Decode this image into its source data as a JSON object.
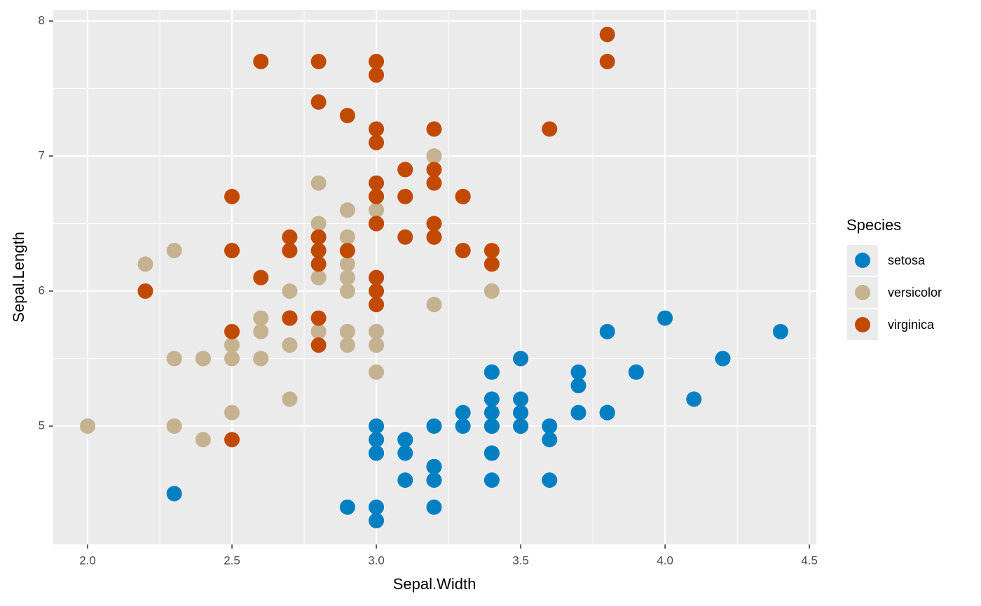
{
  "chart_data": {
    "type": "scatter",
    "x_label": "Sepal.Width",
    "y_label": "Sepal.Length",
    "legend_title": "Species",
    "legend_position": "right",
    "grid": true,
    "xlim": [
      1.881,
      4.524
    ],
    "ylim": [
      4.124,
      8.083
    ],
    "xticks": [
      {
        "value": 2.0,
        "label": "2.0"
      },
      {
        "value": 2.5,
        "label": "2.5"
      },
      {
        "value": 3.0,
        "label": "3.0"
      },
      {
        "value": 3.5,
        "label": "3.5"
      },
      {
        "value": 4.0,
        "label": "4.0"
      },
      {
        "value": 4.5,
        "label": "4.5"
      }
    ],
    "yticks": [
      5,
      6,
      7,
      8
    ],
    "series": [
      {
        "name": "setosa",
        "color": "#0080c2",
        "x": [
          3.5,
          3.0,
          3.2,
          3.1,
          3.6,
          3.9,
          3.4,
          3.4,
          2.9,
          3.1,
          3.7,
          3.4,
          3.0,
          3.0,
          4.0,
          4.4,
          3.9,
          3.5,
          3.8,
          3.8,
          3.4,
          3.7,
          3.6,
          3.3,
          3.4,
          3.0,
          3.4,
          3.5,
          3.4,
          3.2,
          3.1,
          3.4,
          4.1,
          4.2,
          3.1,
          3.2,
          3.5,
          3.6,
          3.0,
          3.4,
          3.5,
          2.3,
          3.2,
          3.5,
          3.8,
          3.0,
          3.8,
          3.2,
          3.7,
          3.3
        ],
        "y": [
          5.1,
          4.9,
          4.7,
          4.6,
          5.0,
          5.4,
          4.6,
          5.0,
          4.4,
          4.9,
          5.4,
          4.8,
          4.8,
          4.3,
          5.8,
          5.7,
          5.4,
          5.1,
          5.7,
          5.1,
          5.4,
          5.1,
          4.6,
          5.1,
          4.8,
          5.0,
          5.0,
          5.2,
          5.2,
          4.7,
          4.8,
          5.4,
          5.2,
          5.5,
          4.9,
          5.0,
          5.5,
          4.9,
          4.4,
          5.1,
          5.0,
          4.5,
          4.4,
          5.0,
          5.1,
          4.8,
          5.1,
          4.6,
          5.3,
          5.0
        ]
      },
      {
        "name": "versicolor",
        "color": "#c4b290",
        "x": [
          3.2,
          3.2,
          3.1,
          2.3,
          2.8,
          2.8,
          3.3,
          2.4,
          2.9,
          2.7,
          2.0,
          3.0,
          2.2,
          2.9,
          2.9,
          3.1,
          3.0,
          2.7,
          2.2,
          2.5,
          3.2,
          2.8,
          2.5,
          2.8,
          2.9,
          3.0,
          2.8,
          3.0,
          2.9,
          2.6,
          2.4,
          2.4,
          2.7,
          2.7,
          3.0,
          3.4,
          3.1,
          2.3,
          3.0,
          2.5,
          2.6,
          3.0,
          2.6,
          2.3,
          2.7,
          3.0,
          2.9,
          2.9,
          2.5,
          2.8
        ],
        "y": [
          7.0,
          6.4,
          6.9,
          5.5,
          6.5,
          5.7,
          6.3,
          4.9,
          6.6,
          5.2,
          5.0,
          5.9,
          6.0,
          6.1,
          5.6,
          6.7,
          5.6,
          5.8,
          6.2,
          5.6,
          5.9,
          6.1,
          6.3,
          6.1,
          6.4,
          6.6,
          6.8,
          6.7,
          6.0,
          5.7,
          5.5,
          5.5,
          5.8,
          6.0,
          5.4,
          6.0,
          6.7,
          6.3,
          5.6,
          5.5,
          5.5,
          6.1,
          5.8,
          5.0,
          5.6,
          5.7,
          5.7,
          6.2,
          5.1,
          5.7
        ]
      },
      {
        "name": "virginica",
        "color": "#c14a00",
        "x": [
          3.3,
          2.7,
          3.0,
          2.9,
          3.0,
          3.0,
          2.5,
          2.9,
          2.5,
          3.6,
          3.2,
          2.7,
          3.0,
          2.5,
          2.8,
          3.2,
          3.0,
          3.8,
          2.6,
          2.2,
          3.2,
          2.8,
          2.8,
          2.7,
          3.3,
          3.2,
          2.8,
          3.0,
          2.8,
          3.0,
          2.8,
          3.8,
          2.8,
          2.8,
          2.6,
          3.0,
          3.4,
          3.1,
          3.0,
          3.1,
          3.1,
          3.1,
          2.7,
          3.2,
          3.3,
          3.0,
          2.5,
          3.0,
          3.4,
          3.0
        ],
        "y": [
          6.3,
          5.8,
          7.1,
          6.3,
          6.5,
          7.6,
          4.9,
          7.3,
          6.7,
          7.2,
          6.5,
          6.4,
          6.8,
          5.7,
          5.8,
          6.4,
          6.5,
          7.7,
          7.7,
          6.0,
          6.9,
          5.6,
          7.7,
          6.3,
          6.7,
          7.2,
          6.2,
          6.1,
          6.4,
          7.2,
          7.4,
          7.9,
          6.4,
          6.3,
          6.1,
          7.7,
          6.3,
          6.4,
          6.0,
          6.9,
          6.7,
          6.9,
          5.8,
          6.8,
          6.7,
          6.7,
          6.3,
          6.5,
          6.2,
          5.9
        ]
      }
    ]
  }
}
